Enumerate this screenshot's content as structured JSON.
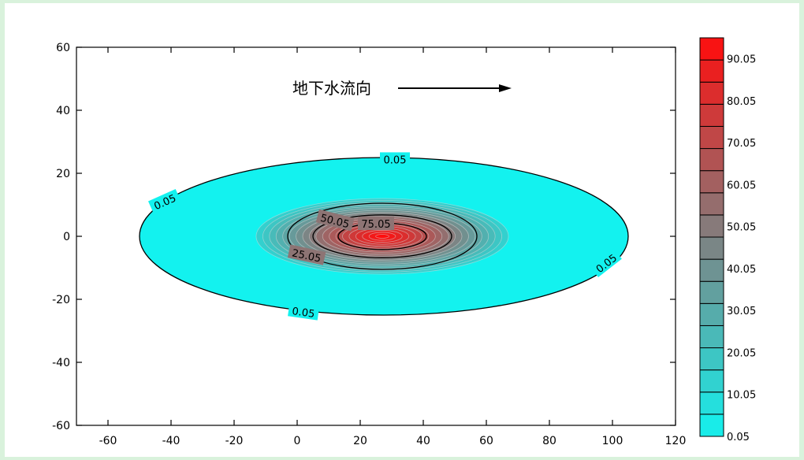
{
  "chart_data": {
    "type": "contour",
    "title": "",
    "xlabel": "",
    "ylabel": "",
    "xlim": [
      -70,
      120
    ],
    "ylim": [
      -60,
      60
    ],
    "x_ticks": [
      "-60",
      "-40",
      "-20",
      "0",
      "20",
      "40",
      "60",
      "80",
      "100",
      "120"
    ],
    "y_ticks": [
      "60",
      "40",
      "20",
      "0",
      "-20",
      "-40",
      "-60"
    ],
    "plume_center": [
      27,
      0
    ],
    "outer_extent": {
      "xmin": -50,
      "xmax": 105,
      "ymin": -25,
      "ymax": 25
    },
    "contour_levels": [
      0.05,
      25.05,
      50.05,
      75.05
    ],
    "contour_labels": [
      {
        "text": "0.05",
        "x": 31,
        "y": 24.4
      },
      {
        "text": "0.05",
        "x": -42,
        "y": 11
      },
      {
        "text": "0.05",
        "x": 98,
        "y": -8.5
      },
      {
        "text": "0.05",
        "x": 2,
        "y": -24
      },
      {
        "text": "25.05",
        "x": 3,
        "y": -6
      },
      {
        "text": "50.05",
        "x": 12,
        "y": 5
      },
      {
        "text": "75.05",
        "x": 25,
        "y": 4
      }
    ],
    "colorbar": {
      "min": 0.05,
      "max": 95.05,
      "labels": [
        "90.05",
        "80.05",
        "70.05",
        "60.05",
        "50.05",
        "40.05",
        "30.05",
        "20.05",
        "10.05",
        "0.05"
      ],
      "low_color": "#13f2ef",
      "mid_color": "#808080",
      "high_color": "#ff0d0d"
    },
    "annotation": {
      "text": "地下水流向",
      "arrow_from": [
        32,
        47
      ],
      "arrow_to": [
        68,
        47
      ]
    },
    "grid": false,
    "legend": "colorbar-right"
  }
}
